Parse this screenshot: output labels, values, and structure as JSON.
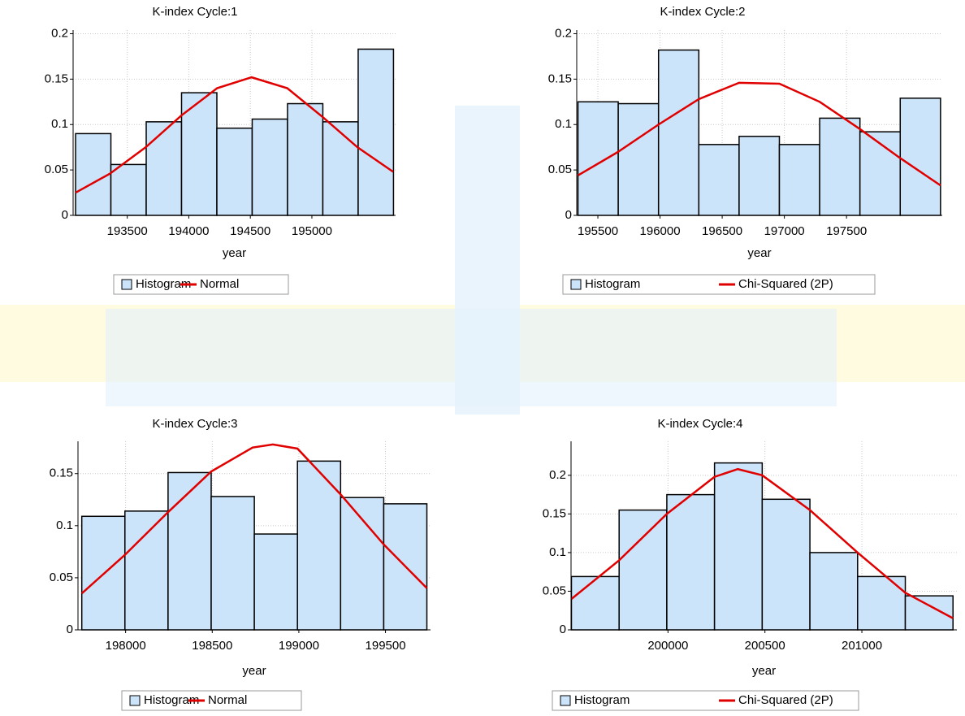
{
  "chart_data": [
    {
      "type": "histogram",
      "title": "K-index Cycle:1",
      "x_label": "year",
      "bins": [
        193080,
        193367,
        193654,
        193941,
        194228,
        194515,
        194802,
        195089,
        195376,
        195663
      ],
      "series": [
        {
          "name": "Histogram",
          "color": "#cce4fa",
          "values": [
            0.09,
            0.056,
            0.103,
            0.135,
            0.096,
            0.106,
            0.123,
            0.103,
            0.183
          ]
        },
        {
          "name": "Normal",
          "color": "#e00000",
          "x": [
            193080,
            193360,
            193650,
            193940,
            194230,
            194510,
            194800,
            195090,
            195370,
            195660
          ],
          "values": [
            0.025,
            0.046,
            0.075,
            0.11,
            0.14,
            0.152,
            0.14,
            0.108,
            0.075,
            0.048
          ]
        }
      ],
      "xlim": [
        193060,
        195680
      ],
      "ylim": [
        0,
        0.204
      ],
      "xticks": [
        193500,
        194000,
        194500,
        195000
      ],
      "yticks": [
        0,
        0.05,
        0.1,
        0.15,
        0.2
      ],
      "grid": true
    },
    {
      "type": "histogram",
      "title": "K-index Cycle:2",
      "x_label": "year",
      "bins": [
        195340,
        195664,
        195988,
        196312,
        196636,
        196960,
        197284,
        197608,
        197932,
        198256
      ],
      "series": [
        {
          "name": "Histogram",
          "color": "#cce4fa",
          "values": [
            0.125,
            0.123,
            0.182,
            0.078,
            0.087,
            0.078,
            0.107,
            0.092,
            0.129
          ]
        },
        {
          "name": "Chi-Squared (2P)",
          "color": "#e00000",
          "x": [
            195340,
            195664,
            195988,
            196312,
            196636,
            196960,
            197284,
            197608,
            197932,
            198256
          ],
          "values": [
            0.044,
            0.07,
            0.1,
            0.128,
            0.146,
            0.145,
            0.125,
            0.095,
            0.063,
            0.033
          ]
        }
      ],
      "xlim": [
        195330,
        198270
      ],
      "ylim": [
        0,
        0.204
      ],
      "xticks": [
        195500,
        196000,
        196500,
        197000,
        197500
      ],
      "yticks": [
        0,
        0.05,
        0.1,
        0.15,
        0.2
      ],
      "grid": true
    },
    {
      "type": "histogram",
      "title": "K-index Cycle:3",
      "x_label": "year",
      "bins": [
        197747,
        197996,
        198245,
        198494,
        198743,
        198992,
        199241,
        199490,
        199739
      ],
      "series": [
        {
          "name": "Histogram",
          "color": "#cce4fa",
          "values": [
            0.109,
            0.114,
            0.151,
            0.128,
            0.092,
            0.162,
            0.127,
            0.121
          ]
        },
        {
          "name": "Normal",
          "color": "#e00000",
          "x": [
            197747,
            197996,
            198245,
            198494,
            198733,
            198850,
            198992,
            199241,
            199490,
            199739
          ],
          "values": [
            0.035,
            0.072,
            0.113,
            0.152,
            0.175,
            0.178,
            0.174,
            0.13,
            0.082,
            0.04
          ]
        }
      ],
      "xlim": [
        197725,
        199760
      ],
      "ylim": [
        0,
        0.181
      ],
      "xticks": [
        198000,
        198500,
        199000,
        199500
      ],
      "yticks": [
        0,
        0.05,
        0.1,
        0.15
      ],
      "grid": true
    },
    {
      "type": "histogram",
      "title": "K-index Cycle:4",
      "x_label": "year",
      "bins": [
        199502,
        199748,
        199994,
        200240,
        200486,
        200732,
        200978,
        201224,
        201470
      ],
      "series": [
        {
          "name": "Histogram",
          "color": "#cce4fa",
          "values": [
            0.069,
            0.155,
            0.175,
            0.216,
            0.169,
            0.1,
            0.069,
            0.044
          ]
        },
        {
          "name": "Chi-Squared (2P)",
          "color": "#e00000",
          "x": [
            199502,
            199748,
            199994,
            200240,
            200360,
            200486,
            200732,
            200978,
            201224,
            201470
          ],
          "values": [
            0.04,
            0.09,
            0.15,
            0.198,
            0.208,
            0.2,
            0.155,
            0.1,
            0.048,
            0.015
          ]
        }
      ],
      "xlim": [
        199500,
        201490
      ],
      "ylim": [
        0,
        0.244
      ],
      "xticks": [
        200000,
        200500,
        201000
      ],
      "yticks": [
        0,
        0.05,
        0.1,
        0.15,
        0.2
      ],
      "grid": true
    }
  ]
}
